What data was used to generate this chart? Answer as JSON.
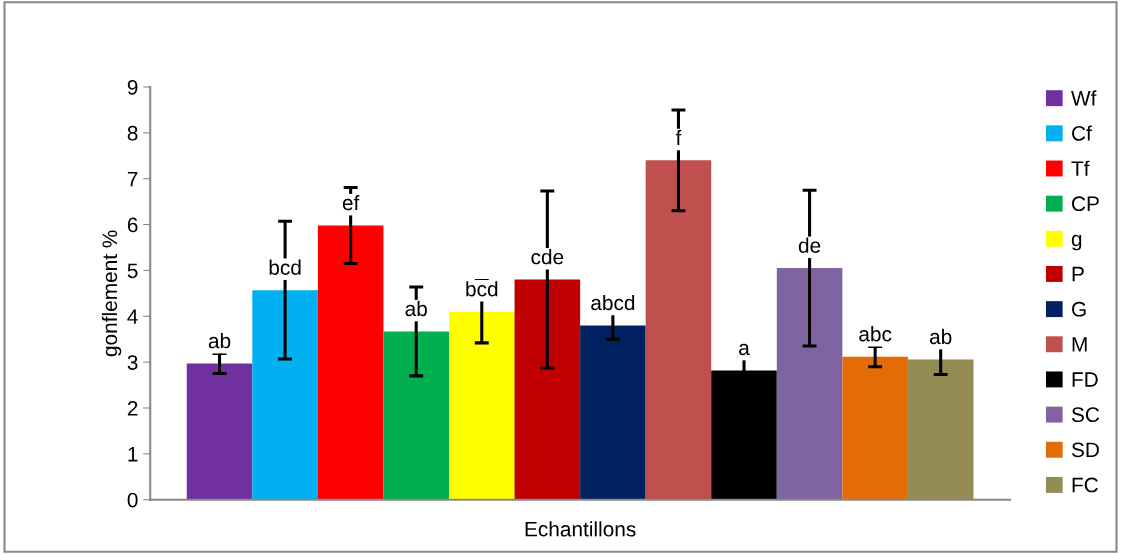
{
  "chart_data": {
    "type": "bar",
    "xlabel": "Echantillons",
    "ylabel": "gonflement %",
    "categories": [
      null
    ],
    "ylim": [
      0,
      9
    ],
    "yticks": [
      0,
      1,
      2,
      3,
      4,
      5,
      6,
      7,
      8,
      9
    ],
    "grid": false,
    "legend": "right",
    "series": [
      {
        "name": "Wf",
        "color": "#7030a0",
        "values": [
          2.97
        ],
        "errors": [
          0.22
        ],
        "value_labels": [
          "ab"
        ]
      },
      {
        "name": "Cf",
        "color": "#00b0f0",
        "values": [
          4.57
        ],
        "errors": [
          1.5
        ],
        "value_labels": [
          "bcd"
        ]
      },
      {
        "name": "Tf",
        "color": "#ff0000",
        "values": [
          5.98
        ],
        "errors": [
          0.83
        ],
        "value_labels": [
          "ef"
        ]
      },
      {
        "name": "CP",
        "color": "#00b050",
        "values": [
          3.67
        ],
        "errors": [
          0.97
        ],
        "value_labels": [
          "ab"
        ]
      },
      {
        "name": "g",
        "color": "#ffff00",
        "values": [
          4.1
        ],
        "errors": [
          0.68
        ],
        "value_labels": [
          "bcd"
        ]
      },
      {
        "name": "P",
        "color": "#c00000",
        "values": [
          4.8
        ],
        "errors": [
          1.93
        ],
        "value_labels": [
          "cde"
        ]
      },
      {
        "name": "G",
        "color": "#002060",
        "values": [
          3.8
        ],
        "errors": [
          0.3
        ],
        "value_labels": [
          "abcd"
        ]
      },
      {
        "name": "M",
        "color": "#c0504d",
        "values": [
          7.4
        ],
        "errors": [
          1.1
        ],
        "value_labels": [
          "f"
        ]
      },
      {
        "name": "FD",
        "color": "#000000",
        "values": [
          2.82
        ],
        "errors": [
          0.3
        ],
        "value_labels": [
          "a"
        ]
      },
      {
        "name": "SC",
        "color": "#8064a2",
        "values": [
          5.05
        ],
        "errors": [
          1.7
        ],
        "value_labels": [
          "de"
        ]
      },
      {
        "name": "SD",
        "color": "#e36c09",
        "values": [
          3.12
        ],
        "errors": [
          0.22
        ],
        "value_labels": [
          "abc"
        ]
      },
      {
        "name": "FC",
        "color": "#948a54",
        "values": [
          3.06
        ],
        "errors": [
          0.33
        ],
        "value_labels": [
          "ab"
        ]
      }
    ]
  }
}
